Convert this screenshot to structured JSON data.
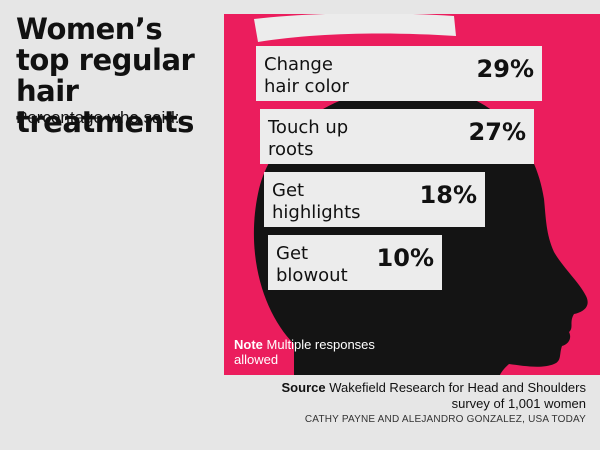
{
  "header": {
    "title": "Women’s top regular hair treatments",
    "subtitle": "Percentage who said:"
  },
  "chart_data": {
    "type": "bar",
    "title": "Women’s top regular hair treatments",
    "subtitle": "Percentage who said:",
    "unit": "%",
    "categories": [
      [
        "Change",
        "hair color"
      ],
      [
        "Touch up",
        "roots"
      ],
      [
        "Get",
        "highlights"
      ],
      [
        "Get",
        "blowout"
      ]
    ],
    "values": [
      29,
      27,
      18,
      10
    ],
    "value_labels": [
      "29%",
      "27%",
      "18%",
      "10%"
    ]
  },
  "note": {
    "label": "Note",
    "text": "Multiple responses allowed"
  },
  "source": {
    "label": "Source",
    "text": "Wakefield Research for Head and Shoulders survey of 1,001 women"
  },
  "credit": "CATHY PAYNE AND ALEJANDRO GONZALEZ, USA TODAY",
  "colors": {
    "panel": "#eb1d5d",
    "silhouette": "#141414",
    "bar": "#ececec",
    "background": "#e6e6e6"
  }
}
